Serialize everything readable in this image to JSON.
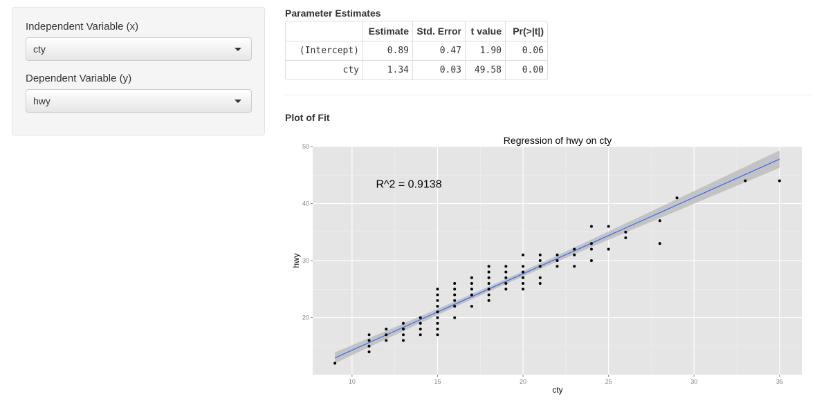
{
  "sidebar": {
    "x_label": "Independent Variable (x)",
    "x_value": "cty",
    "y_label": "Dependent Variable (y)",
    "y_value": "hwy"
  },
  "estimates": {
    "heading": "Parameter Estimates",
    "columns": [
      "",
      "Estimate",
      "Std. Error",
      "t value",
      "Pr(>|t|)"
    ],
    "rows": [
      [
        "(Intercept)",
        "0.89",
        "0.47",
        "1.90",
        "0.06"
      ],
      [
        "cty",
        "1.34",
        "0.03",
        "49.58",
        "0.00"
      ]
    ]
  },
  "plot": {
    "heading": "Plot of Fit",
    "annotation": "R^2 = 0.9138"
  },
  "colors": {
    "panel_bg": "#e5e5e5",
    "grid": "#ffffff",
    "fit_line": "#3366ff",
    "ribbon": "#bdbdbd",
    "point": "#000000"
  },
  "chart_data": {
    "type": "scatter",
    "title": "Regression of hwy on cty",
    "xlabel": "cty",
    "ylabel": "hwy",
    "xlim": [
      7.7,
      36.3
    ],
    "ylim": [
      10,
      50
    ],
    "x_ticks": [
      10,
      15,
      20,
      25,
      30,
      35
    ],
    "y_ticks": [
      20,
      30,
      40,
      50
    ],
    "grid": true,
    "annotations": [
      {
        "text": "R^2 = 0.9138",
        "x": 11.4,
        "y": 43.5
      }
    ],
    "fit": {
      "intercept": 0.89,
      "slope": 1.34,
      "x_range": [
        9,
        35
      ],
      "se_band": true
    },
    "points": [
      [
        9,
        12
      ],
      [
        11,
        14
      ],
      [
        11,
        15
      ],
      [
        11,
        16
      ],
      [
        11,
        17
      ],
      [
        12,
        16
      ],
      [
        12,
        17
      ],
      [
        12,
        18
      ],
      [
        13,
        16
      ],
      [
        13,
        17
      ],
      [
        13,
        18
      ],
      [
        13,
        19
      ],
      [
        14,
        17
      ],
      [
        14,
        18
      ],
      [
        14,
        19
      ],
      [
        14,
        20
      ],
      [
        15,
        17
      ],
      [
        15,
        18
      ],
      [
        15,
        19
      ],
      [
        15,
        20
      ],
      [
        15,
        21
      ],
      [
        15,
        22
      ],
      [
        15,
        23
      ],
      [
        15,
        24
      ],
      [
        15,
        25
      ],
      [
        16,
        20
      ],
      [
        16,
        22
      ],
      [
        16,
        23
      ],
      [
        16,
        24
      ],
      [
        16,
        25
      ],
      [
        16,
        26
      ],
      [
        17,
        22
      ],
      [
        17,
        24
      ],
      [
        17,
        25
      ],
      [
        17,
        26
      ],
      [
        17,
        27
      ],
      [
        18,
        23
      ],
      [
        18,
        24
      ],
      [
        18,
        25
      ],
      [
        18,
        26
      ],
      [
        18,
        27
      ],
      [
        18,
        28
      ],
      [
        18,
        29
      ],
      [
        19,
        25
      ],
      [
        19,
        26
      ],
      [
        19,
        27
      ],
      [
        19,
        28
      ],
      [
        19,
        29
      ],
      [
        20,
        25
      ],
      [
        20,
        26
      ],
      [
        20,
        27
      ],
      [
        20,
        28
      ],
      [
        20,
        29
      ],
      [
        20,
        31
      ],
      [
        21,
        26
      ],
      [
        21,
        27
      ],
      [
        21,
        29
      ],
      [
        21,
        30
      ],
      [
        21,
        31
      ],
      [
        22,
        29
      ],
      [
        22,
        30
      ],
      [
        22,
        31
      ],
      [
        23,
        29
      ],
      [
        23,
        31
      ],
      [
        23,
        32
      ],
      [
        24,
        30
      ],
      [
        24,
        32
      ],
      [
        24,
        33
      ],
      [
        24,
        36
      ],
      [
        25,
        32
      ],
      [
        25,
        36
      ],
      [
        26,
        34
      ],
      [
        26,
        35
      ],
      [
        28,
        33
      ],
      [
        28,
        37
      ],
      [
        29,
        41
      ],
      [
        33,
        44
      ],
      [
        35,
        44
      ]
    ]
  }
}
